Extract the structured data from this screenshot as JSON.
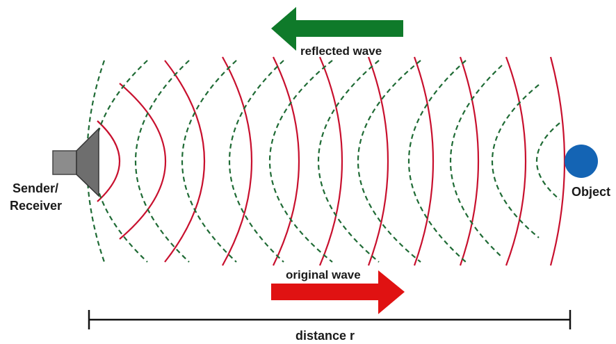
{
  "labels": {
    "reflected": "reflected wave",
    "original": "original wave",
    "sender_line1": "Sender/",
    "sender_line2": "Receiver",
    "object": "Object",
    "distance": "distance r"
  },
  "icons": {
    "sender": "speaker-icon",
    "object": "circle-object-icon",
    "reflected_arrow": "arrow-left-icon",
    "original_arrow": "arrow-right-icon"
  },
  "colors": {
    "original_wave": "#c8102e",
    "reflected_wave": "#1f6b35",
    "reflected_arrow": "#0f7a2a",
    "original_arrow": "#e01212",
    "object": "#1464b4",
    "speaker_body": "#8c8c8c",
    "speaker_cone": "#6e6e6e",
    "dimension_line": "#111111"
  }
}
